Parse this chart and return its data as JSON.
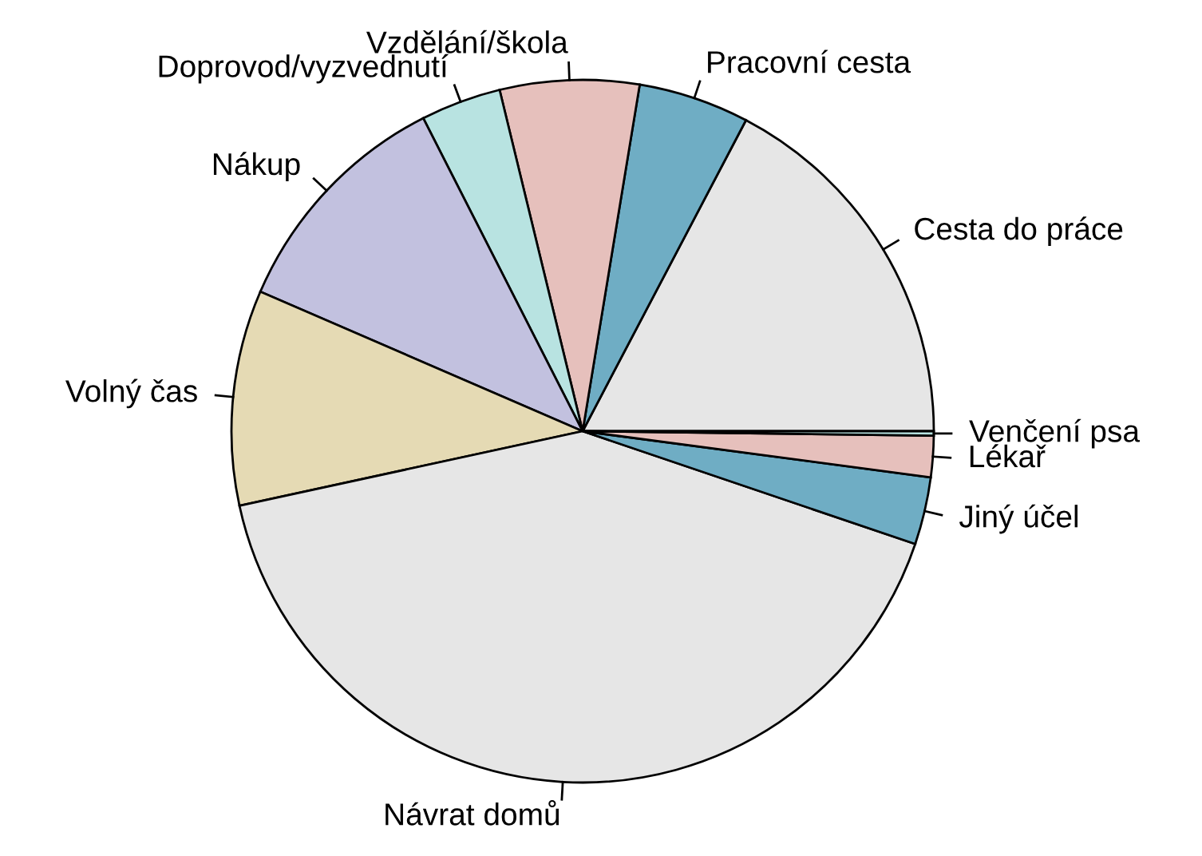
{
  "chart_data": {
    "type": "pie",
    "categories": [
      "Cesta do práce",
      "Pracovní cesta",
      "Vzdělání/škola",
      "Doprovod/vyzvednutí",
      "Nákup",
      "Volný čas",
      "Návrat domů",
      "Jiný účel",
      "Lékař",
      "Venčení psa"
    ],
    "values": [
      17.3,
      5.1,
      6.4,
      3.7,
      11.0,
      9.9,
      41.4,
      3.1,
      1.9,
      0.2
    ],
    "colors": [
      "#e6e6e6",
      "#6fadc4",
      "#e6c0bc",
      "#b8e3e1",
      "#c2c1df",
      "#e5dab4",
      "#e6e6e6",
      "#6fadc4",
      "#e6c0bc",
      "#b8e3e1"
    ]
  }
}
